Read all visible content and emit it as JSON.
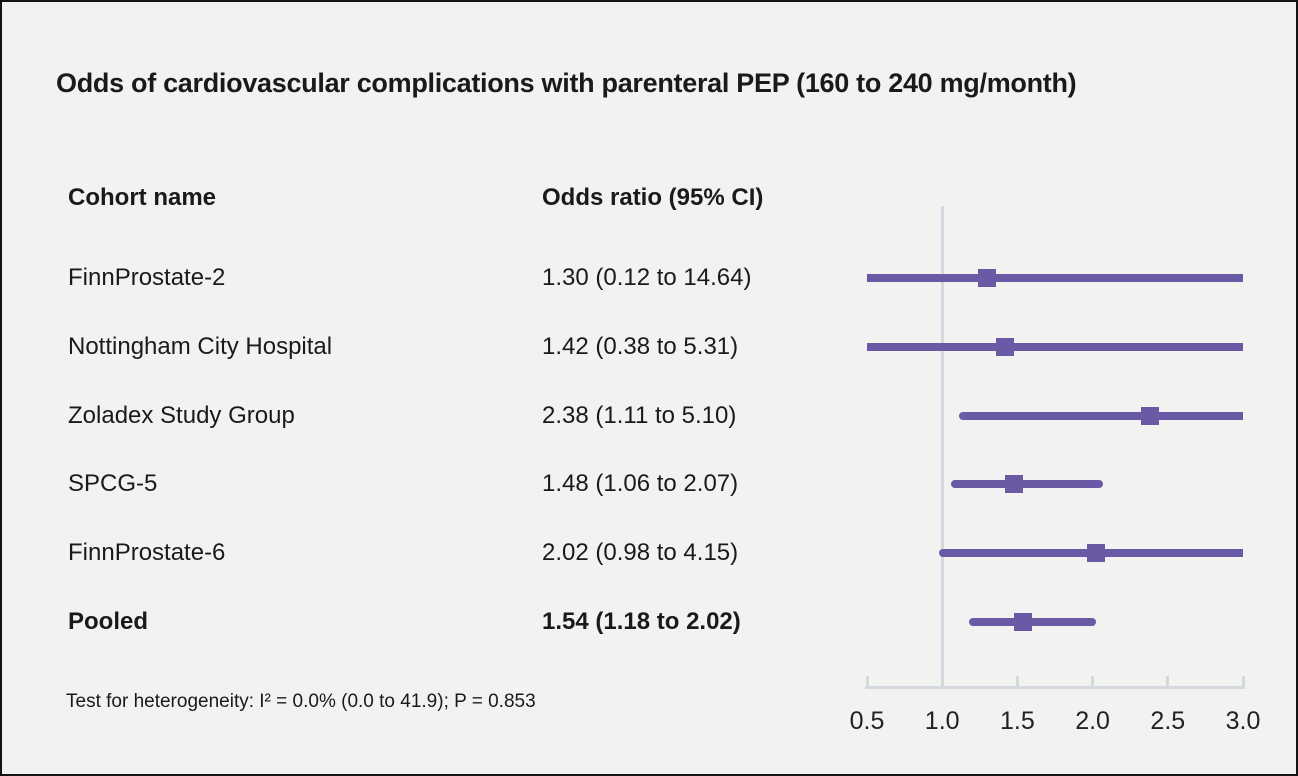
{
  "title": "Odds of cardiovascular complications with parenteral PEP (160 to 240 mg/month)",
  "table": {
    "cohort_header": "Cohort name",
    "estimate_header": "Odds ratio (95% CI)"
  },
  "footnote": "Test for heterogeneity: I² = 0.0% (0.0 to 41.9); P = 0.853",
  "colors": {
    "accent_purple": "#6a5aa6",
    "axis_gray": "#d4d8df",
    "background": "#f2f2f1",
    "text": "#1a1a1a"
  },
  "chart_data": {
    "type": "forest",
    "title": "Odds of cardiovascular complications with parenteral PEP (160 to 240 mg/month)",
    "effect_measure": "Odds ratio (95% CI)",
    "axis": {
      "scale": "linear",
      "range": [
        0.5,
        3.0
      ],
      "ticks": [
        0.5,
        1.0,
        1.5,
        2.0,
        2.5,
        3.0
      ],
      "tick_labels": [
        "0.5",
        "1.0",
        "1.5",
        "2.0",
        "2.5",
        "3.0"
      ],
      "reference_line": 1.0
    },
    "studies": [
      {
        "name": "FinnProstate-2",
        "or": 1.3,
        "ci_low": 0.12,
        "ci_high": 14.64,
        "estimate_label": "1.30 (0.12 to 14.64)",
        "pooled": false
      },
      {
        "name": "Nottingham City Hospital",
        "or": 1.42,
        "ci_low": 0.38,
        "ci_high": 5.31,
        "estimate_label": "1.42 (0.38 to 5.31)",
        "pooled": false
      },
      {
        "name": "Zoladex Study Group",
        "or": 2.38,
        "ci_low": 1.11,
        "ci_high": 5.1,
        "estimate_label": "2.38 (1.11 to 5.10)",
        "pooled": false
      },
      {
        "name": "SPCG-5",
        "or": 1.48,
        "ci_low": 1.06,
        "ci_high": 2.07,
        "estimate_label": "1.48 (1.06 to 2.07)",
        "pooled": false
      },
      {
        "name": "FinnProstate-6",
        "or": 2.02,
        "ci_low": 0.98,
        "ci_high": 4.15,
        "estimate_label": "2.02 (0.98 to 4.15)",
        "pooled": false
      },
      {
        "name": "Pooled",
        "or": 1.54,
        "ci_low": 1.18,
        "ci_high": 2.02,
        "estimate_label": "1.54 (1.18 to 2.02)",
        "pooled": true
      }
    ],
    "heterogeneity": "Test for heterogeneity: I² = 0.0% (0.0 to 41.9); P = 0.853"
  }
}
